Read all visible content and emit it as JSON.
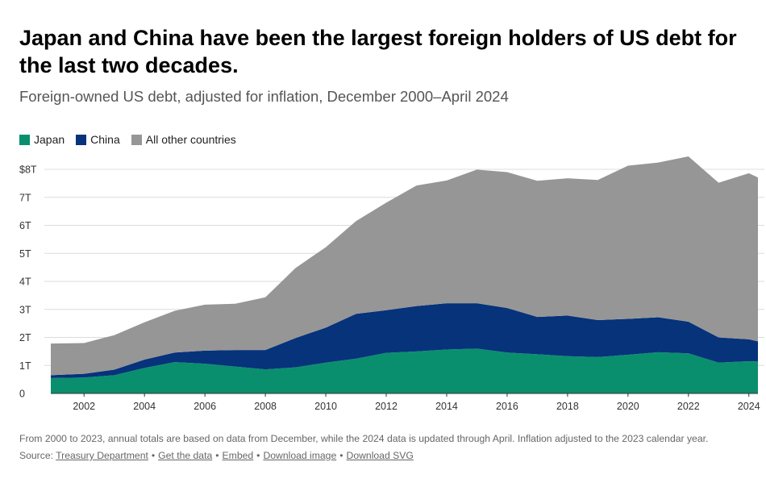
{
  "title": "Japan and China have been the largest foreign holders of US debt for the last two decades.",
  "subtitle": "Foreign-owned US debt, adjusted for inflation, December 2000–April 2024",
  "legend": [
    {
      "label": "Japan",
      "color": "#0a8f6e"
    },
    {
      "label": "China",
      "color": "#06337a"
    },
    {
      "label": "All other countries",
      "color": "#969696"
    }
  ],
  "footnote": "From 2000 to 2023, annual totals are based on data from December, while the 2024 data is updated through April. Inflation adjusted to the 2023 calendar year.",
  "source": {
    "prefix": "Source:",
    "links": [
      "Treasury Department",
      "Get the data",
      "Embed",
      "Download image",
      "Download SVG"
    ],
    "separator": "•"
  },
  "chart_data": {
    "type": "area",
    "stacked": true,
    "title": "Japan and China have been the largest foreign holders of US debt for the last two decades.",
    "xlabel": "",
    "ylabel": "",
    "x": [
      2000.9,
      2002,
      2003,
      2004,
      2005,
      2006,
      2007,
      2008,
      2009,
      2010,
      2011,
      2012,
      2013,
      2014,
      2015,
      2016,
      2017,
      2018,
      2019,
      2020,
      2021,
      2022,
      2023,
      2024,
      2024.3
    ],
    "series": [
      {
        "name": "Japan",
        "color": "#0a8f6e",
        "values": [
          0.55,
          0.57,
          0.65,
          0.91,
          1.12,
          1.06,
          0.96,
          0.86,
          0.93,
          1.1,
          1.24,
          1.45,
          1.5,
          1.57,
          1.6,
          1.46,
          1.4,
          1.33,
          1.3,
          1.38,
          1.47,
          1.43,
          1.1,
          1.15,
          1.14
        ]
      },
      {
        "name": "China",
        "color": "#06337a",
        "values": [
          0.1,
          0.13,
          0.2,
          0.3,
          0.34,
          0.47,
          0.59,
          0.69,
          1.05,
          1.25,
          1.6,
          1.52,
          1.62,
          1.65,
          1.62,
          1.59,
          1.33,
          1.45,
          1.32,
          1.28,
          1.25,
          1.13,
          0.9,
          0.78,
          0.72
        ]
      },
      {
        "name": "All other countries",
        "color": "#969696",
        "values": [
          1.13,
          1.1,
          1.23,
          1.33,
          1.49,
          1.64,
          1.65,
          1.88,
          2.5,
          2.87,
          3.31,
          3.84,
          4.3,
          4.38,
          4.77,
          4.85,
          4.86,
          4.9,
          5.0,
          5.47,
          5.52,
          5.9,
          5.52,
          5.93,
          5.85
        ]
      }
    ],
    "xlim": [
      2000.9,
      2024.3
    ],
    "ylim": [
      0,
      8
    ],
    "yticks": [
      0,
      1,
      2,
      3,
      4,
      5,
      6,
      7,
      8
    ],
    "ytick_labels": [
      "0",
      "1T",
      "2T",
      "3T",
      "4T",
      "5T",
      "6T",
      "7T",
      "$8T"
    ],
    "xticks": [
      2002,
      2004,
      2006,
      2008,
      2010,
      2012,
      2014,
      2016,
      2018,
      2020,
      2022,
      2024
    ],
    "xtick_labels": [
      "2002",
      "2004",
      "2006",
      "2008",
      "2010",
      "2012",
      "2014",
      "2016",
      "2018",
      "2020",
      "2022",
      "2024"
    ],
    "grid": true,
    "legend_position": "top-left"
  }
}
